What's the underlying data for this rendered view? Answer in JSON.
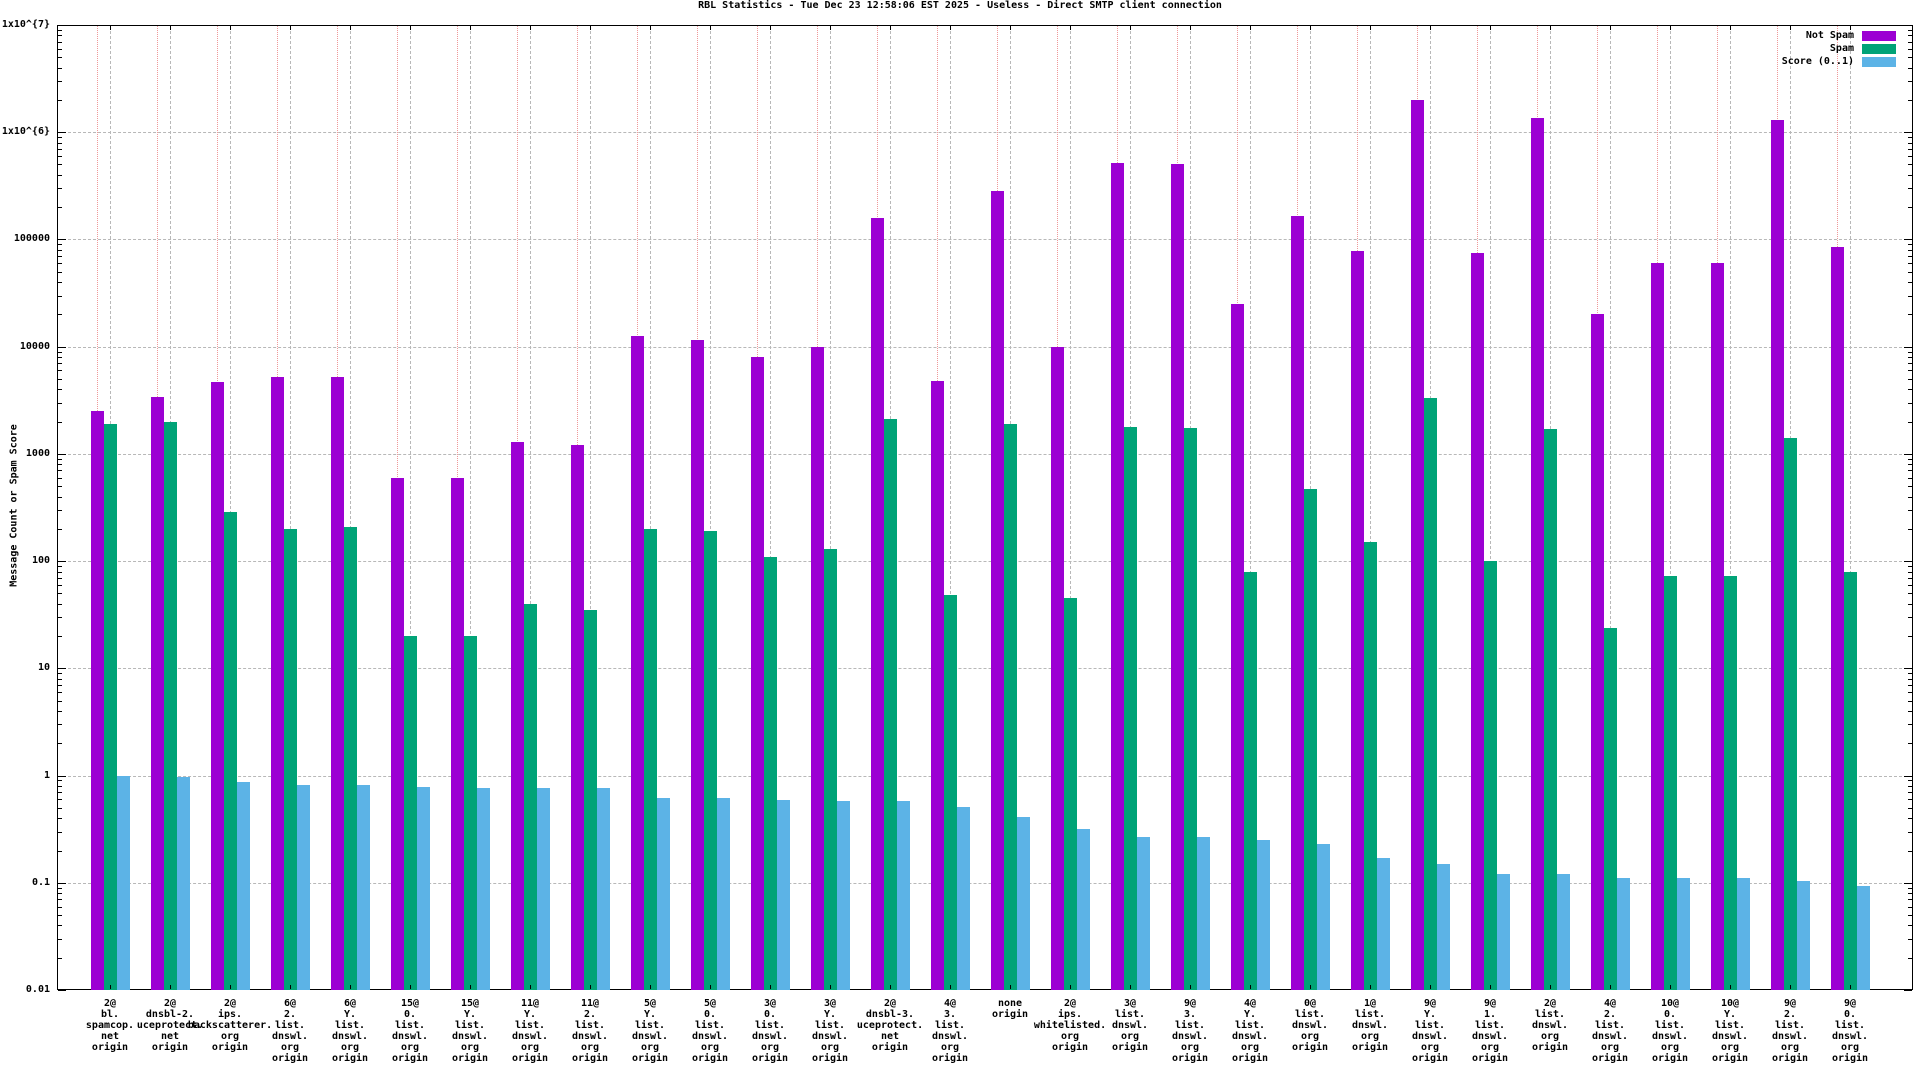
{
  "page": {
    "background": "#ffffff"
  },
  "chart_data": {
    "type": "bar",
    "scale": "log-y",
    "title": "RBL Statistics - Tue Dec 23 12:58:06 EST 2025 - Useless - Direct SMTP client connection",
    "ylabel": "Message Count or Spam Score",
    "ylim": [
      0.01,
      10000000
    ],
    "grid": true,
    "legend_position": "top-right-inside",
    "colors": {
      "not_spam": "#9c00d3",
      "spam": "#00a377",
      "score": "#5cb3e6",
      "grid": "#b8b8b8",
      "bar_guide": "#f09898",
      "axis": "#000000",
      "background": "#ffffff"
    },
    "y_ticks": [
      {
        "label": "1x10^{7}",
        "value": 10000000
      },
      {
        "label": "1x10^{6}",
        "value": 1000000
      },
      {
        "label": "100000",
        "value": 100000
      },
      {
        "label": "10000",
        "value": 10000
      },
      {
        "label": "1000",
        "value": 1000
      },
      {
        "label": "100",
        "value": 100
      },
      {
        "label": "10",
        "value": 10
      },
      {
        "label": "1",
        "value": 1
      },
      {
        "label": "0.1",
        "value": 0.1
      },
      {
        "label": "0.01",
        "value": 0.01
      }
    ],
    "categories": [
      [
        "2@",
        "bl.",
        "spamcop.",
        "net",
        "origin"
      ],
      [
        "2@",
        "dnsbl-2.",
        "uceprotect.",
        "net",
        "origin"
      ],
      [
        "2@",
        "ips.",
        "backscatterer.",
        "org",
        "origin"
      ],
      [
        "6@",
        "2.",
        "list.",
        "dnswl.",
        "org",
        "origin"
      ],
      [
        "6@",
        "Y.",
        "list.",
        "dnswl.",
        "org",
        "origin"
      ],
      [
        "15@",
        "0.",
        "list.",
        "dnswl.",
        "org",
        "origin"
      ],
      [
        "15@",
        "Y.",
        "list.",
        "dnswl.",
        "org",
        "origin"
      ],
      [
        "11@",
        "Y.",
        "list.",
        "dnswl.",
        "org",
        "origin"
      ],
      [
        "11@",
        "2.",
        "list.",
        "dnswl.",
        "org",
        "origin"
      ],
      [
        "5@",
        "Y.",
        "list.",
        "dnswl.",
        "org",
        "origin"
      ],
      [
        "5@",
        "0.",
        "list.",
        "dnswl.",
        "org",
        "origin"
      ],
      [
        "3@",
        "0.",
        "list.",
        "dnswl.",
        "org",
        "origin"
      ],
      [
        "3@",
        "Y.",
        "list.",
        "dnswl.",
        "org",
        "origin"
      ],
      [
        "2@",
        "dnsbl-3.",
        "uceprotect.",
        "net",
        "origin"
      ],
      [
        "4@",
        "3.",
        "list.",
        "dnswl.",
        "org",
        "origin"
      ],
      [
        "none",
        "origin"
      ],
      [
        "2@",
        "ips.",
        "whitelisted.",
        "org",
        "origin"
      ],
      [
        "3@",
        "list.",
        "dnswl.",
        "org",
        "origin"
      ],
      [
        "9@",
        "3.",
        "list.",
        "dnswl.",
        "org",
        "origin"
      ],
      [
        "4@",
        "Y.",
        "list.",
        "dnswl.",
        "org",
        "origin"
      ],
      [
        "0@",
        "list.",
        "dnswl.",
        "org",
        "origin"
      ],
      [
        "1@",
        "list.",
        "dnswl.",
        "org",
        "origin"
      ],
      [
        "9@",
        "Y.",
        "list.",
        "dnswl.",
        "org",
        "origin"
      ],
      [
        "9@",
        "1.",
        "list.",
        "dnswl.",
        "org",
        "origin"
      ],
      [
        "2@",
        "list.",
        "dnswl.",
        "org",
        "origin"
      ],
      [
        "4@",
        "2.",
        "list.",
        "dnswl.",
        "org",
        "origin"
      ],
      [
        "10@",
        "0.",
        "list.",
        "dnswl.",
        "org",
        "origin"
      ],
      [
        "10@",
        "Y.",
        "list.",
        "dnswl.",
        "org",
        "origin"
      ],
      [
        "9@",
        "2.",
        "list.",
        "dnswl.",
        "org",
        "origin"
      ],
      [
        "9@",
        "0.",
        "list.",
        "dnswl.",
        "org",
        "origin"
      ]
    ],
    "series": [
      {
        "name": "Not Spam",
        "color": "#9c00d3",
        "values": [
          2500,
          3400,
          4700,
          5200,
          5200,
          600,
          600,
          1300,
          1200,
          12500,
          11500,
          8000,
          10000,
          160000,
          4800,
          280000,
          10000,
          520000,
          510000,
          25000,
          165000,
          78000,
          2000000,
          75000,
          1350000,
          20000,
          60000,
          60000,
          1300000,
          85000
        ]
      },
      {
        "name": "Spam",
        "color": "#00a377",
        "values": [
          1900,
          2000,
          290,
          200,
          210,
          20,
          20,
          40,
          35,
          200,
          190,
          110,
          130,
          2100,
          48,
          1900,
          45,
          1800,
          1750,
          80,
          470,
          150,
          3300,
          100,
          1700,
          24,
          72,
          72,
          1400,
          80
        ]
      },
      {
        "name": "Score (0..1)",
        "color": "#5cb3e6",
        "values": [
          1.0,
          0.97,
          0.87,
          0.82,
          0.82,
          0.78,
          0.77,
          0.76,
          0.76,
          0.62,
          0.62,
          0.59,
          0.58,
          0.58,
          0.51,
          0.41,
          0.32,
          0.27,
          0.27,
          0.25,
          0.23,
          0.17,
          0.15,
          0.12,
          0.12,
          0.11,
          0.11,
          0.11,
          0.105,
          0.093
        ]
      }
    ]
  }
}
